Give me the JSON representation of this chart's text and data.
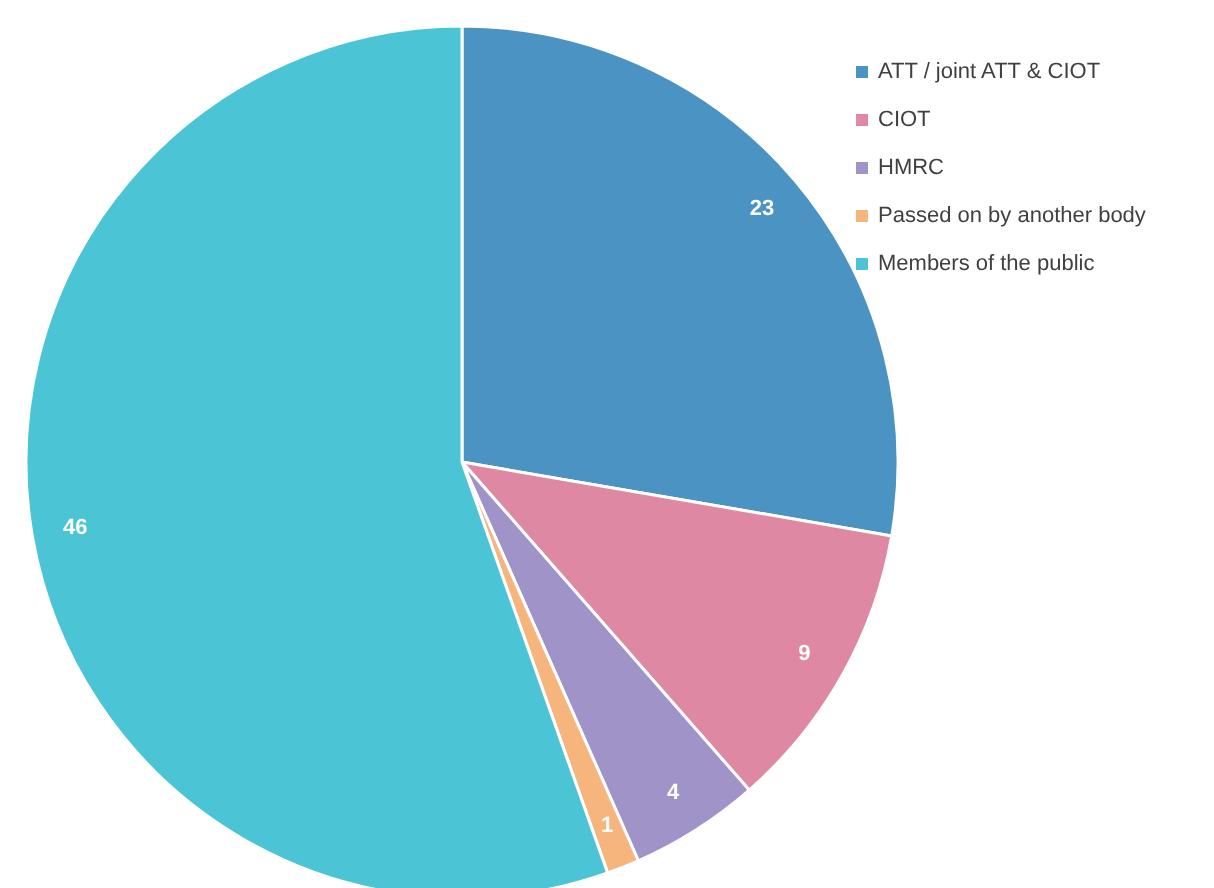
{
  "chart_data": {
    "type": "pie",
    "categories": [
      "ATT / joint ATT & CIOT",
      "CIOT",
      "HMRC",
      "Passed on by another body",
      "Members of the public"
    ],
    "values": [
      23,
      9,
      4,
      1,
      46
    ],
    "colors": [
      "#4a93c3",
      "#df88a3",
      "#a093c7",
      "#f6b57c",
      "#4bc5d5"
    ],
    "data_labels": true,
    "legend": "top right"
  }
}
